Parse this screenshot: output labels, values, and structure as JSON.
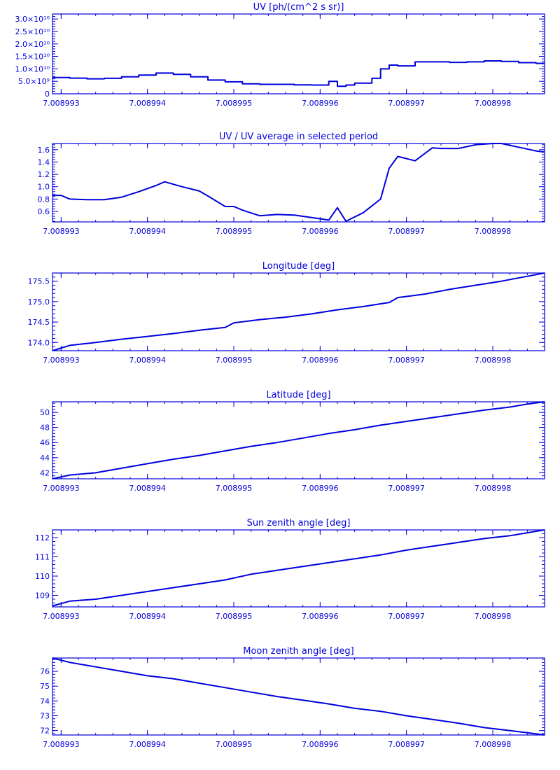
{
  "colors": {
    "ink": "#0000dd",
    "background": "#ffffff"
  },
  "chart_data": [
    {
      "type": "line",
      "step": true,
      "title": "UV [ph/(cm^2 s sr)]",
      "xlim": [
        7.0089929,
        7.0089986
      ],
      "ylim": [
        0,
        32000000000.0
      ],
      "x_ticks": [
        "7.008993",
        "7.008994",
        "7.008995",
        "7.008996",
        "7.008997",
        "7.008998"
      ],
      "y_ticks": [
        {
          "value": 0,
          "label": "0"
        },
        {
          "value": 5000000000.0,
          "label": "5.0×10⁹"
        },
        {
          "value": 10000000000.0,
          "label": "1.0×10¹⁰"
        },
        {
          "value": 15000000000.0,
          "label": "1.5×10¹⁰"
        },
        {
          "value": 20000000000.0,
          "label": "2.0×10¹⁰"
        },
        {
          "value": 25000000000.0,
          "label": "2.5×10¹⁰"
        },
        {
          "value": 30000000000.0,
          "label": "3.0×10¹⁰"
        }
      ],
      "series": [
        {
          "x": [
            7.0089929,
            7.0089931,
            7.0089933,
            7.0089935,
            7.0089937,
            7.0089939,
            7.0089941,
            7.0089943,
            7.0089945,
            7.0089947,
            7.0089949,
            7.0089951,
            7.0089953,
            7.0089955,
            7.0089957,
            7.0089959,
            7.0089961,
            7.0089962,
            7.0089963,
            7.0089964,
            7.0089966,
            7.0089967,
            7.0089968,
            7.0089969,
            7.0089971,
            7.0089973,
            7.0089975,
            7.0089977,
            7.0089979,
            7.0089981,
            7.0089983,
            7.0089985
          ],
          "y": [
            6500000000.0,
            6300000000.0,
            6000000000.0,
            6200000000.0,
            6800000000.0,
            7500000000.0,
            8300000000.0,
            7800000000.0,
            6800000000.0,
            5500000000.0,
            4800000000.0,
            4000000000.0,
            3800000000.0,
            3800000000.0,
            3600000000.0,
            3500000000.0,
            5000000000.0,
            3000000000.0,
            3500000000.0,
            4300000000.0,
            6200000000.0,
            10000000000.0,
            11500000000.0,
            11200000000.0,
            12800000000.0,
            12800000000.0,
            12600000000.0,
            12800000000.0,
            13200000000.0,
            13000000000.0,
            12500000000.0,
            12200000000.0
          ]
        }
      ]
    },
    {
      "type": "line",
      "title": "UV / UV average in selected period",
      "xlim": [
        7.0089929,
        7.0089986
      ],
      "ylim": [
        0.43,
        1.7
      ],
      "x_ticks": [
        "7.008993",
        "7.008994",
        "7.008995",
        "7.008996",
        "7.008997",
        "7.008998"
      ],
      "y_ticks": [
        {
          "value": 0.6,
          "label": "0.6"
        },
        {
          "value": 0.8,
          "label": "0.8"
        },
        {
          "value": 1.0,
          "label": "1.0"
        },
        {
          "value": 1.2,
          "label": "1.2"
        },
        {
          "value": 1.4,
          "label": "1.4"
        },
        {
          "value": 1.6,
          "label": "1.6"
        }
      ],
      "series": [
        {
          "x": [
            7.0089929,
            7.008993,
            7.0089931,
            7.0089933,
            7.0089935,
            7.0089937,
            7.0089939,
            7.0089941,
            7.0089942,
            7.0089944,
            7.0089946,
            7.0089947,
            7.0089949,
            7.008995,
            7.0089951,
            7.0089953,
            7.0089955,
            7.0089957,
            7.0089959,
            7.0089961,
            7.0089962,
            7.0089963,
            7.0089965,
            7.0089967,
            7.0089968,
            7.0089969,
            7.0089971,
            7.0089973,
            7.0089974,
            7.0089976,
            7.0089978,
            7.008998,
            7.0089981,
            7.0089983,
            7.0089985,
            7.0089986
          ],
          "y": [
            0.86,
            0.86,
            0.8,
            0.79,
            0.79,
            0.83,
            0.92,
            1.02,
            1.08,
            1.0,
            0.93,
            0.85,
            0.68,
            0.68,
            0.62,
            0.53,
            0.55,
            0.54,
            0.5,
            0.46,
            0.66,
            0.44,
            0.58,
            0.8,
            1.3,
            1.49,
            1.42,
            1.63,
            1.62,
            1.62,
            1.68,
            1.7,
            1.7,
            1.64,
            1.58,
            1.56
          ]
        }
      ]
    },
    {
      "type": "line",
      "title": "Longitude [deg]",
      "xlim": [
        7.0089929,
        7.0089986
      ],
      "ylim": [
        173.8,
        175.7
      ],
      "x_ticks": [
        "7.008993",
        "7.008994",
        "7.008995",
        "7.008996",
        "7.008997",
        "7.008998"
      ],
      "y_ticks": [
        {
          "value": 174.0,
          "label": "174.0"
        },
        {
          "value": 174.5,
          "label": "174.5"
        },
        {
          "value": 175.0,
          "label": "175.0"
        },
        {
          "value": 175.5,
          "label": "175.5"
        }
      ],
      "series": [
        {
          "x": [
            7.0089929,
            7.0089931,
            7.0089934,
            7.0089937,
            7.008994,
            7.0089943,
            7.0089946,
            7.0089949,
            7.008995,
            7.0089953,
            7.0089956,
            7.0089959,
            7.0089962,
            7.0089965,
            7.0089968,
            7.0089969,
            7.0089972,
            7.0089975,
            7.0089978,
            7.0089981,
            7.0089984,
            7.0089986
          ],
          "y": [
            173.8,
            173.93,
            174.0,
            174.08,
            174.15,
            174.22,
            174.3,
            174.37,
            174.48,
            174.56,
            174.62,
            174.7,
            174.8,
            174.88,
            174.98,
            175.1,
            175.18,
            175.3,
            175.4,
            175.5,
            175.62,
            175.7
          ]
        }
      ]
    },
    {
      "type": "line",
      "title": "Latitude [deg]",
      "xlim": [
        7.0089929,
        7.0089986
      ],
      "ylim": [
        41.2,
        51.4
      ],
      "x_ticks": [
        "7.008993",
        "7.008994",
        "7.008995",
        "7.008996",
        "7.008997",
        "7.008998"
      ],
      "y_ticks": [
        {
          "value": 42,
          "label": "42"
        },
        {
          "value": 44,
          "label": "44"
        },
        {
          "value": 46,
          "label": "46"
        },
        {
          "value": 48,
          "label": "48"
        },
        {
          "value": 50,
          "label": "50"
        }
      ],
      "series": [
        {
          "x": [
            7.0089929,
            7.0089931,
            7.0089934,
            7.0089937,
            7.008994,
            7.0089943,
            7.0089946,
            7.0089949,
            7.0089952,
            7.0089955,
            7.0089958,
            7.0089961,
            7.0089964,
            7.0089967,
            7.008997,
            7.0089973,
            7.0089976,
            7.0089979,
            7.0089982,
            7.0089984,
            7.0089986
          ],
          "y": [
            41.2,
            41.7,
            42.0,
            42.6,
            43.2,
            43.8,
            44.3,
            44.9,
            45.5,
            46.0,
            46.6,
            47.2,
            47.7,
            48.3,
            48.8,
            49.3,
            49.8,
            50.3,
            50.7,
            51.1,
            51.4
          ]
        }
      ]
    },
    {
      "type": "line",
      "title": "Sun zenith angle [deg]",
      "xlim": [
        7.0089929,
        7.0089986
      ],
      "ylim": [
        108.4,
        112.4
      ],
      "x_ticks": [
        "7.008993",
        "7.008994",
        "7.008995",
        "7.008996",
        "7.008997",
        "7.008998"
      ],
      "y_ticks": [
        {
          "value": 109,
          "label": "109"
        },
        {
          "value": 110,
          "label": "110"
        },
        {
          "value": 111,
          "label": "111"
        },
        {
          "value": 112,
          "label": "112"
        }
      ],
      "series": [
        {
          "x": [
            7.0089929,
            7.0089931,
            7.0089934,
            7.0089937,
            7.008994,
            7.0089943,
            7.0089946,
            7.0089949,
            7.0089952,
            7.0089955,
            7.0089958,
            7.0089961,
            7.0089964,
            7.0089967,
            7.008997,
            7.0089973,
            7.0089976,
            7.0089979,
            7.0089982,
            7.0089984,
            7.0089986
          ],
          "y": [
            108.45,
            108.7,
            108.8,
            109.0,
            109.2,
            109.4,
            109.6,
            109.8,
            110.1,
            110.3,
            110.5,
            110.7,
            110.9,
            111.1,
            111.35,
            111.55,
            111.75,
            111.95,
            112.1,
            112.25,
            112.4
          ]
        }
      ]
    },
    {
      "type": "line",
      "title": "Moon zenith angle [deg]",
      "xlim": [
        7.0089929,
        7.0089986
      ],
      "ylim": [
        71.7,
        76.9
      ],
      "x_ticks": [
        "7.008993",
        "7.008994",
        "7.008995",
        "7.008996",
        "7.008997",
        "7.008998"
      ],
      "y_ticks": [
        {
          "value": 72,
          "label": "72"
        },
        {
          "value": 73,
          "label": "73"
        },
        {
          "value": 74,
          "label": "74"
        },
        {
          "value": 75,
          "label": "75"
        },
        {
          "value": 76,
          "label": "76"
        }
      ],
      "series": [
        {
          "x": [
            7.0089929,
            7.0089931,
            7.0089934,
            7.0089937,
            7.008994,
            7.0089943,
            7.0089946,
            7.0089949,
            7.0089952,
            7.0089955,
            7.0089958,
            7.0089961,
            7.0089964,
            7.0089967,
            7.008997,
            7.0089973,
            7.0089976,
            7.0089979,
            7.0089982,
            7.0089984,
            7.0089986
          ],
          "y": [
            76.9,
            76.6,
            76.3,
            76.0,
            75.7,
            75.5,
            75.2,
            74.9,
            74.6,
            74.3,
            74.05,
            73.8,
            73.5,
            73.3,
            73.0,
            72.75,
            72.5,
            72.2,
            72.0,
            71.85,
            71.7
          ]
        }
      ]
    }
  ]
}
